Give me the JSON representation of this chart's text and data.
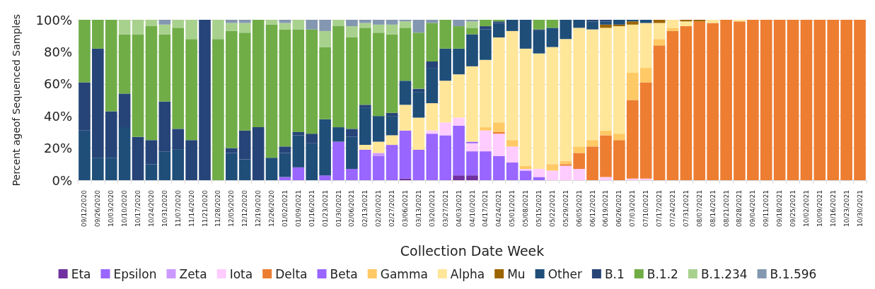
{
  "chart_data": {
    "type": "bar",
    "stacked": true,
    "xlabel": "Collection Date Week",
    "ylabel": "Percent ageof Sequenced Samples",
    "categories": [
      "09/12/2020",
      "09/26/2020",
      "10/03/2020",
      "10/10/2020",
      "10/17/2020",
      "10/24/2020",
      "10/31/2020",
      "11/07/2020",
      "11/14/2020",
      "11/21/2020",
      "11/28/2020",
      "12/05/2020",
      "12/12/2020",
      "12/19/2020",
      "12/26/2020",
      "01/02/2021",
      "01/09/2021",
      "01/16/2021",
      "01/23/2021",
      "01/30/2021",
      "02/06/2021",
      "02/13/2021",
      "02/20/2021",
      "02/27/2021",
      "03/06/2021",
      "03/13/2021",
      "03/20/2021",
      "03/27/2021",
      "04/03/2021",
      "04/10/2021",
      "04/17/2021",
      "04/24/2021",
      "05/01/2021",
      "05/08/2021",
      "05/15/2021",
      "05/22/2021",
      "05/29/2021",
      "06/05/2021",
      "06/12/2021",
      "06/19/2021",
      "06/26/2021",
      "07/03/2021",
      "07/10/2021",
      "07/17/2021",
      "07/24/2021",
      "07/31/2021",
      "08/07/2021",
      "08/14/2021",
      "08/21/2021",
      "08/28/2021",
      "09/04/2021",
      "09/11/2021",
      "09/18/2021",
      "09/25/2021",
      "10/02/2021",
      "10/09/2021",
      "10/16/2021",
      "10/23/2021",
      "10/30/2021"
    ],
    "series": [
      {
        "name": "Eta",
        "color": "#7030a0",
        "values": [
          0,
          0,
          0,
          0,
          0,
          0,
          0,
          0,
          0,
          0,
          0,
          0,
          0,
          0,
          0,
          0,
          0,
          0,
          0,
          0,
          0,
          0,
          0,
          0,
          1,
          0,
          0,
          0,
          3,
          3,
          0,
          0,
          0,
          0,
          0,
          0,
          0,
          0,
          0,
          0,
          0,
          0,
          0,
          0,
          0,
          0,
          0,
          0,
          0,
          0,
          0,
          0,
          0,
          0,
          0,
          0,
          0,
          0,
          0
        ]
      },
      {
        "name": "Epsilon",
        "color": "#9966ff",
        "values": [
          0,
          0,
          0,
          0,
          0,
          0,
          0,
          0,
          0,
          0,
          0,
          0,
          0,
          0,
          0,
          2,
          8,
          0,
          3,
          24,
          7,
          19,
          15,
          22,
          30,
          19,
          29,
          28,
          31,
          15,
          18,
          15,
          11,
          6,
          2,
          0,
          0,
          0,
          0,
          0,
          0,
          0,
          0,
          0,
          0,
          0,
          0,
          0,
          0,
          0,
          0,
          0,
          0,
          0,
          0,
          0,
          0,
          0,
          0
        ]
      },
      {
        "name": "Zeta",
        "color": "#cc99ff",
        "values": [
          0,
          0,
          0,
          0,
          0,
          0,
          0,
          0,
          0,
          0,
          0,
          0,
          0,
          0,
          0,
          0,
          0,
          0,
          0,
          0,
          0,
          0,
          2,
          0,
          0,
          0,
          0,
          0,
          0,
          0,
          0,
          0,
          0,
          0,
          0,
          0,
          0,
          0,
          0,
          0,
          0,
          0,
          0,
          0,
          0,
          0,
          0,
          0,
          0,
          0,
          0,
          0,
          0,
          0,
          0,
          0,
          0,
          0,
          0
        ]
      },
      {
        "name": "Iota",
        "color": "#ffccff",
        "values": [
          0,
          0,
          0,
          0,
          0,
          0,
          0,
          0,
          0,
          0,
          0,
          0,
          0,
          0,
          0,
          0,
          0,
          0,
          0,
          0,
          0,
          0,
          0,
          0,
          0,
          0,
          2,
          8,
          5,
          5,
          13,
          14,
          10,
          1,
          5,
          6,
          9,
          7,
          0,
          2,
          0,
          1,
          1,
          0,
          0,
          0,
          0,
          0,
          0,
          0,
          0,
          0,
          0,
          0,
          0,
          0,
          0,
          0,
          0
        ]
      },
      {
        "name": "Delta",
        "color": "#ed7d31",
        "values": [
          0,
          0,
          0,
          0,
          0,
          0,
          0,
          0,
          0,
          0,
          0,
          0,
          0,
          0,
          0,
          0,
          0,
          0,
          0,
          0,
          0,
          0,
          0,
          0,
          0,
          0,
          0,
          0,
          0,
          0,
          0,
          1,
          0,
          0,
          0,
          0,
          1,
          10,
          21,
          26,
          25,
          49,
          60,
          84,
          93,
          96,
          99,
          98,
          100,
          99,
          100,
          100,
          100,
          100,
          100,
          100,
          100,
          100,
          100
        ]
      },
      {
        "name": "Beta",
        "color": "#9966ff",
        "values": [
          0,
          0,
          0,
          0,
          0,
          0,
          0,
          0,
          0,
          0,
          0,
          0,
          0,
          0,
          0,
          0,
          0,
          0,
          0,
          0,
          0,
          0,
          0,
          0,
          0,
          0,
          0,
          0,
          0,
          1,
          0,
          0,
          0,
          0,
          0,
          0,
          0,
          0,
          0,
          0,
          0,
          0,
          0,
          0,
          0,
          0,
          0,
          0,
          0,
          0,
          0,
          0,
          0,
          0,
          0,
          0,
          0,
          0,
          0
        ]
      },
      {
        "name": "Gamma",
        "color": "#ffc965",
        "values": [
          0,
          0,
          0,
          0,
          0,
          0,
          0,
          0,
          0,
          0,
          0,
          0,
          0,
          0,
          0,
          0,
          0,
          0,
          0,
          0,
          0,
          0,
          0,
          0,
          0,
          0,
          0,
          0,
          0,
          0,
          2,
          6,
          4,
          2,
          0,
          4,
          2,
          4,
          4,
          3,
          4,
          17,
          9,
          4,
          2,
          0,
          0,
          0,
          0,
          0,
          0,
          0,
          0,
          0,
          0,
          0,
          0,
          0,
          0
        ]
      },
      {
        "name": "Alpha",
        "color": "#ffe699",
        "values": [
          0,
          0,
          0,
          0,
          0,
          0,
          0,
          0,
          0,
          0,
          0,
          0,
          0,
          0,
          0,
          0,
          0,
          0,
          0,
          0,
          0,
          3,
          7,
          6,
          16,
          20,
          17,
          26,
          27,
          47,
          42,
          53,
          68,
          73,
          72,
          73,
          76,
          74,
          69,
          64,
          67,
          30,
          28,
          10,
          5,
          3,
          0,
          2,
          0,
          1,
          0,
          0,
          0,
          0,
          0,
          0,
          0,
          0,
          0
        ]
      },
      {
        "name": "Mu",
        "color": "#9c6500",
        "values": [
          0,
          0,
          0,
          0,
          0,
          0,
          0,
          0,
          0,
          0,
          0,
          0,
          0,
          0,
          0,
          0,
          0,
          0,
          0,
          0,
          0,
          0,
          0,
          0,
          0,
          0,
          0,
          0,
          0,
          0,
          0,
          0,
          0,
          0,
          0,
          0,
          0,
          0,
          0,
          2,
          1,
          2,
          0,
          2,
          0,
          1,
          1,
          0,
          0,
          0,
          0,
          0,
          0,
          0,
          0,
          0,
          0,
          0,
          0
        ]
      },
      {
        "name": "Other",
        "color": "#1f4e79",
        "values": [
          31,
          14,
          14,
          33,
          0,
          10,
          18,
          19,
          0,
          0,
          0,
          17,
          13,
          0,
          14,
          15,
          20,
          23,
          35,
          9,
          20,
          23,
          16,
          12,
          15,
          16,
          22,
          20,
          16,
          20,
          19,
          9,
          7,
          18,
          14,
          12,
          12,
          5,
          5,
          2,
          3,
          1,
          2,
          0,
          0,
          0,
          0,
          0,
          0,
          0,
          0,
          0,
          0,
          0,
          0,
          0,
          0,
          0,
          0
        ]
      },
      {
        "name": "B.1",
        "color": "#264478",
        "values": [
          30,
          68,
          29,
          21,
          27,
          15,
          31,
          13,
          25,
          100,
          0,
          3,
          18,
          33,
          0,
          4,
          2,
          6,
          0,
          0,
          5,
          2,
          0,
          2,
          0,
          2,
          4,
          0,
          0,
          0,
          2,
          1,
          0,
          0,
          1,
          0,
          0,
          0,
          1,
          1,
          0,
          0,
          0,
          0,
          0,
          0,
          0,
          0,
          0,
          0,
          0,
          0,
          0,
          0,
          0,
          0,
          0,
          0,
          0
        ]
      },
      {
        "name": "B.1.2",
        "color": "#70ad47",
        "values": [
          39,
          18,
          57,
          37,
          64,
          71,
          42,
          63,
          63,
          0,
          88,
          73,
          61,
          67,
          83,
          73,
          64,
          65,
          45,
          63,
          57,
          48,
          52,
          49,
          33,
          35,
          24,
          18,
          14,
          4,
          4,
          1,
          0,
          0,
          6,
          5,
          0,
          0,
          0,
          0,
          0,
          0,
          0,
          0,
          0,
          0,
          0,
          0,
          0,
          0,
          0,
          0,
          0,
          0,
          0,
          0,
          0,
          0,
          0
        ]
      },
      {
        "name": "B.1.234",
        "color": "#a9d18e",
        "values": [
          0,
          0,
          0,
          9,
          9,
          4,
          6,
          5,
          12,
          0,
          12,
          5,
          6,
          0,
          3,
          4,
          6,
          0,
          10,
          4,
          7,
          3,
          5,
          6,
          4,
          0,
          0,
          0,
          0,
          4,
          0,
          0,
          0,
          0,
          0,
          0,
          0,
          0,
          0,
          0,
          0,
          0,
          0,
          0,
          0,
          0,
          0,
          0,
          0,
          0,
          0,
          0,
          0,
          0,
          0,
          0,
          0,
          0,
          0
        ]
      },
      {
        "name": "B.1.596",
        "color": "#8497b0",
        "values": [
          0,
          0,
          0,
          0,
          0,
          0,
          3,
          0,
          0,
          0,
          0,
          2,
          2,
          0,
          0,
          2,
          0,
          6,
          7,
          0,
          4,
          2,
          3,
          3,
          1,
          8,
          2,
          0,
          4,
          1,
          0,
          0,
          0,
          0,
          0,
          0,
          0,
          0,
          0,
          0,
          0,
          0,
          0,
          0,
          0,
          0,
          0,
          0,
          0,
          0,
          0,
          0,
          0,
          0,
          0,
          0,
          0,
          0,
          0
        ]
      }
    ],
    "ylim": [
      0,
      100
    ],
    "yticks": [
      {
        "value": 0,
        "label": "0%"
      },
      {
        "value": 20,
        "label": "20%"
      },
      {
        "value": 40,
        "label": "40%"
      },
      {
        "value": 60,
        "label": "60%"
      },
      {
        "value": 80,
        "label": "80%"
      },
      {
        "value": 100,
        "label": "100%"
      }
    ],
    "grid": "y",
    "legend": "bottom"
  }
}
